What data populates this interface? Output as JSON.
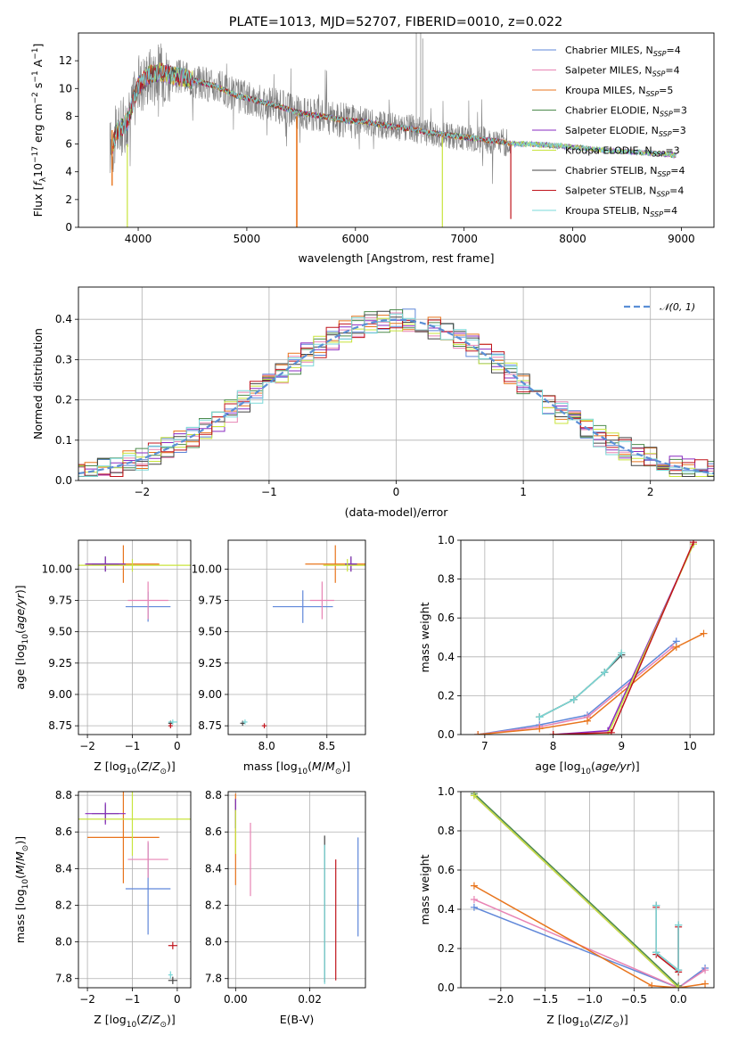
{
  "figure": {
    "title": "PLATE=1013, MJD=52707, FIBERID=0010, z=0.022"
  },
  "colors": {
    "Chabrier MILES": "#5f87d9",
    "Salpeter MILES": "#e884b4",
    "Kroupa MILES": "#e8741c",
    "Chabrier ELODIE": "#4c8a4c",
    "Salpeter ELODIE": "#8a2bc0",
    "Kroupa ELODIE": "#c8e43c",
    "Chabrier STELIB": "#444444",
    "Salpeter STELIB": "#c0141c",
    "Kroupa STELIB": "#7ad8d8"
  },
  "chart_data": [
    {
      "id": "spectrum",
      "type": "line",
      "title": "PLATE=1013, MJD=52707, FIBERID=0010, z=0.022",
      "xlabel": "wavelength [Angstrom, rest frame]",
      "ylabel": "Flux [f_λ 10^-17 erg cm^-2 s^-1 A^-1]",
      "xlim": [
        3450,
        9300
      ],
      "ylim": [
        0,
        14
      ],
      "xticks": [
        "4000",
        "5000",
        "6000",
        "7000",
        "8000",
        "9000"
      ],
      "yticks": [
        "0",
        "2",
        "4",
        "6",
        "8",
        "10",
        "12"
      ],
      "grid": false,
      "legend_position": "top-right",
      "legend": [
        {
          "model": "Chabrier MILES",
          "nssp": "4"
        },
        {
          "model": "Salpeter MILES",
          "nssp": "4"
        },
        {
          "model": "Kroupa MILES",
          "nssp": "5"
        },
        {
          "model": "Chabrier ELODIE",
          "nssp": "3"
        },
        {
          "model": "Salpeter ELODIE",
          "nssp": "3"
        },
        {
          "model": "Kroupa ELODIE",
          "nssp": "3"
        },
        {
          "model": "Chabrier STELIB",
          "nssp": "4"
        },
        {
          "model": "Salpeter STELIB",
          "nssp": "4"
        },
        {
          "model": "Kroupa STELIB",
          "nssp": "4"
        }
      ],
      "continuum": [
        [
          3760,
          5.8
        ],
        [
          3800,
          6.8
        ],
        [
          3900,
          7.6
        ],
        [
          4000,
          10.2
        ],
        [
          4100,
          11.0
        ],
        [
          4200,
          11.2
        ],
        [
          4300,
          11.0
        ],
        [
          4500,
          10.6
        ],
        [
          4700,
          10.2
        ],
        [
          4900,
          9.5
        ],
        [
          5100,
          9.1
        ],
        [
          5300,
          8.7
        ],
        [
          5500,
          8.2
        ],
        [
          5700,
          8.0
        ],
        [
          5900,
          7.7
        ],
        [
          6100,
          7.6
        ],
        [
          6300,
          7.3
        ],
        [
          6500,
          7.1
        ],
        [
          6700,
          6.8
        ],
        [
          6900,
          6.6
        ],
        [
          7100,
          6.4
        ],
        [
          7300,
          6.2
        ],
        [
          7450,
          6.0
        ],
        [
          7600,
          6.0
        ],
        [
          7800,
          5.9
        ],
        [
          8000,
          5.8
        ],
        [
          8200,
          5.6
        ],
        [
          8400,
          5.5
        ],
        [
          8600,
          5.4
        ],
        [
          8800,
          5.3
        ],
        [
          8950,
          5.2
        ]
      ]
    },
    {
      "id": "residuals",
      "type": "histogram",
      "xlabel": "(data-model)/error",
      "ylabel": "Normed distribution",
      "xlim": [
        -2.5,
        2.5
      ],
      "ylim": [
        0,
        0.48
      ],
      "xticks": [
        "−2",
        "−1",
        "0",
        "1",
        "2"
      ],
      "yticks": [
        "0.0",
        "0.1",
        "0.2",
        "0.3",
        "0.4"
      ],
      "grid": true,
      "legend_position": "top-right",
      "legend": [
        "𝒩(0, 1)"
      ],
      "bin_width": 0.1
    },
    {
      "id": "age-vs-z",
      "type": "errorbar",
      "xlabel": "Z [log10(Z/Z⊙)]",
      "ylabel": "age  [log10(age/yr)]",
      "xlim": [
        -2.2,
        0.3
      ],
      "ylim": [
        8.68,
        10.23
      ],
      "xticks": [
        "−2",
        "−1",
        "0"
      ],
      "yticks": [
        "8.75",
        "9.00",
        "9.25",
        "9.50",
        "9.75",
        "10.00"
      ],
      "grid": true,
      "points": [
        {
          "series": "Chabrier MILES",
          "x": -0.65,
          "xerr": 0.5,
          "y": 9.7,
          "yerr": 0.12
        },
        {
          "series": "Salpeter MILES",
          "x": -0.65,
          "xerr": 0.45,
          "y": 9.75,
          "yerr": 0.15
        },
        {
          "series": "Kroupa MILES",
          "x": -1.2,
          "xerr": 0.8,
          "y": 10.04,
          "yerr": 0.15
        },
        {
          "series": "Chabrier ELODIE",
          "x": -1.6,
          "xerr": 0.3,
          "y": 10.04,
          "yerr": 0.06
        },
        {
          "series": "Salpeter ELODIE",
          "x": -1.6,
          "xerr": 0.45,
          "y": 10.04,
          "yerr": 0.06
        },
        {
          "series": "Kroupa ELODIE",
          "x": -1.0,
          "xerr": 1.3,
          "y": 10.03,
          "yerr": 0.05
        },
        {
          "series": "Chabrier STELIB",
          "x": -0.15,
          "xerr": 0.05,
          "y": 8.77,
          "yerr": 0.02
        },
        {
          "series": "Salpeter STELIB",
          "x": -0.15,
          "xerr": 0.05,
          "y": 8.75,
          "yerr": 0.02
        },
        {
          "series": "Kroupa STELIB",
          "x": -0.1,
          "xerr": 0.1,
          "y": 8.78,
          "yerr": 0.02
        }
      ]
    },
    {
      "id": "age-vs-mass",
      "type": "errorbar",
      "xlabel": "mass [log10(M/M⊙)]",
      "ylabel": "",
      "xlim": [
        7.68,
        8.82
      ],
      "ylim": [
        8.68,
        10.23
      ],
      "xticks": [
        "8.0",
        "8.5"
      ],
      "yticks": [
        "8.75",
        "9.00",
        "9.25",
        "9.50",
        "9.75",
        "10.00"
      ],
      "grid": true,
      "points": [
        {
          "series": "Chabrier MILES",
          "x": 8.3,
          "xerr": 0.25,
          "y": 9.7,
          "yerr": 0.13
        },
        {
          "series": "Salpeter MILES",
          "x": 8.46,
          "xerr": 0.1,
          "y": 9.75,
          "yerr": 0.15
        },
        {
          "series": "Kroupa MILES",
          "x": 8.57,
          "xerr": 0.25,
          "y": 10.04,
          "yerr": 0.15
        },
        {
          "series": "Chabrier ELODIE",
          "x": 8.7,
          "xerr": 0.05,
          "y": 10.04,
          "yerr": 0.06
        },
        {
          "series": "Salpeter ELODIE",
          "x": 8.7,
          "xerr": 0.05,
          "y": 10.04,
          "yerr": 0.06
        },
        {
          "series": "Kroupa ELODIE",
          "x": 8.67,
          "xerr": 0.2,
          "y": 10.03,
          "yerr": 0.05
        },
        {
          "series": "Chabrier STELIB",
          "x": 7.8,
          "xerr": 0.02,
          "y": 8.77,
          "yerr": 0.02
        },
        {
          "series": "Salpeter STELIB",
          "x": 7.98,
          "xerr": 0.02,
          "y": 8.75,
          "yerr": 0.02
        },
        {
          "series": "Kroupa STELIB",
          "x": 7.82,
          "xerr": 0.02,
          "y": 8.78,
          "yerr": 0.02
        }
      ]
    },
    {
      "id": "mass-weight-vs-age",
      "type": "line",
      "xlabel": "age  [log10(age/yr)]",
      "ylabel": "mass weight",
      "xlim": [
        6.65,
        10.35
      ],
      "ylim": [
        0,
        1
      ],
      "xticks": [
        "7",
        "8",
        "9",
        "10"
      ],
      "yticks": [
        "0.0",
        "0.2",
        "0.4",
        "0.6",
        "0.8",
        "1.0"
      ],
      "grid": true,
      "series": [
        {
          "name": "Chabrier MILES",
          "points": [
            [
              6.9,
              0.0
            ],
            [
              7.8,
              0.05
            ],
            [
              8.5,
              0.1
            ],
            [
              9.8,
              0.48
            ]
          ]
        },
        {
          "name": "Salpeter MILES",
          "points": [
            [
              6.9,
              0.0
            ],
            [
              7.8,
              0.04
            ],
            [
              8.5,
              0.09
            ],
            [
              9.75,
              0.45
            ]
          ]
        },
        {
          "name": "Kroupa MILES",
          "points": [
            [
              6.9,
              0.0
            ],
            [
              7.8,
              0.03
            ],
            [
              8.5,
              0.07
            ],
            [
              9.8,
              0.45
            ],
            [
              10.2,
              0.52
            ]
          ]
        },
        {
          "name": "Chabrier ELODIE",
          "points": [
            [
              7.8,
              0.09
            ],
            [
              8.3,
              0.18
            ],
            [
              8.75,
              0.32
            ],
            [
              9.0,
              0.42
            ]
          ]
        },
        {
          "name": "Salpeter ELODIE",
          "points": [
            [
              8.0,
              0.0
            ],
            [
              8.8,
              0.02
            ],
            [
              10.05,
              0.98
            ]
          ]
        },
        {
          "name": "Kroupa ELODIE",
          "points": [
            [
              8.0,
              0.0
            ],
            [
              8.8,
              0.0
            ],
            [
              10.05,
              0.98
            ]
          ]
        },
        {
          "name": "Chabrier STELIB",
          "points": [
            [
              7.8,
              0.09
            ],
            [
              8.3,
              0.18
            ],
            [
              8.75,
              0.32
            ],
            [
              9.0,
              0.41
            ]
          ]
        },
        {
          "name": "Salpeter STELIB",
          "points": [
            [
              8.0,
              0.0
            ],
            [
              8.85,
              0.01
            ],
            [
              10.05,
              0.99
            ]
          ]
        },
        {
          "name": "Kroupa STELIB",
          "points": [
            [
              7.8,
              0.09
            ],
            [
              8.3,
              0.18
            ],
            [
              8.75,
              0.32
            ],
            [
              9.0,
              0.42
            ]
          ]
        }
      ]
    },
    {
      "id": "mass-vs-z",
      "type": "errorbar",
      "xlabel": "Z [log10(Z/Z⊙)]",
      "ylabel": "mass [log10(M/M⊙)]",
      "xlim": [
        -2.2,
        0.3
      ],
      "ylim": [
        7.75,
        8.82
      ],
      "xticks": [
        "−2",
        "−1",
        "0"
      ],
      "yticks": [
        "7.8",
        "8.0",
        "8.2",
        "8.4",
        "8.6",
        "8.8"
      ],
      "grid": true,
      "points": [
        {
          "series": "Chabrier MILES",
          "x": -0.65,
          "xerr": 0.5,
          "y": 8.29,
          "yerr": 0.25
        },
        {
          "series": "Salpeter MILES",
          "x": -0.65,
          "xerr": 0.45,
          "y": 8.45,
          "yerr": 0.1
        },
        {
          "series": "Kroupa MILES",
          "x": -1.2,
          "xerr": 0.8,
          "y": 8.57,
          "yerr": 0.25
        },
        {
          "series": "Chabrier ELODIE",
          "x": -1.6,
          "xerr": 0.3,
          "y": 8.7,
          "yerr": 0.05
        },
        {
          "series": "Salpeter ELODIE",
          "x": -1.6,
          "xerr": 0.45,
          "y": 8.7,
          "yerr": 0.06
        },
        {
          "series": "Kroupa ELODIE",
          "x": -1.0,
          "xerr": 1.3,
          "y": 8.67,
          "yerr": 0.2
        },
        {
          "series": "Chabrier STELIB",
          "x": -0.1,
          "xerr": 0.1,
          "y": 7.79,
          "yerr": 0.02
        },
        {
          "series": "Salpeter STELIB",
          "x": -0.1,
          "xerr": 0.1,
          "y": 7.98,
          "yerr": 0.02
        },
        {
          "series": "Kroupa STELIB",
          "x": -0.15,
          "xerr": 0.05,
          "y": 7.82,
          "yerr": 0.02
        }
      ]
    },
    {
      "id": "mass-vs-ebv",
      "type": "errorbar",
      "xlabel": "E(B-V)",
      "ylabel": "",
      "xlim": [
        -0.002,
        0.035
      ],
      "ylim": [
        7.75,
        8.82
      ],
      "xticks": [
        "0.00",
        "0.02"
      ],
      "yticks": [
        "7.8",
        "8.0",
        "8.2",
        "8.4",
        "8.6",
        "8.8"
      ],
      "grid": true,
      "points": [
        {
          "series": "Chabrier MILES",
          "x": 0.033,
          "y": 8.3,
          "yerr": 0.27
        },
        {
          "series": "Salpeter MILES",
          "x": 0.004,
          "y": 8.45,
          "yerr": 0.2
        },
        {
          "series": "Kroupa MILES",
          "x": 0.0,
          "y": 8.56,
          "yerr": 0.25
        },
        {
          "series": "Chabrier ELODIE",
          "x": 0.0,
          "y": 8.7,
          "yerr": 0.08
        },
        {
          "series": "Salpeter ELODIE",
          "x": 0.0,
          "y": 8.7,
          "yerr": 0.08
        },
        {
          "series": "Kroupa ELODIE",
          "x": 0.0,
          "y": 8.6,
          "yerr": 0.12
        },
        {
          "series": "Chabrier STELIB",
          "x": 0.024,
          "y": 8.18,
          "yerr": 0.4
        },
        {
          "series": "Salpeter STELIB",
          "x": 0.027,
          "y": 8.12,
          "yerr": 0.33
        },
        {
          "series": "Kroupa STELIB",
          "x": 0.024,
          "y": 8.15,
          "yerr": 0.38
        }
      ]
    },
    {
      "id": "mass-weight-vs-z",
      "type": "line",
      "xlabel": "Z [log10(Z/Z⊙)]",
      "ylabel": "mass weight",
      "xlim": [
        -2.45,
        0.4
      ],
      "ylim": [
        0,
        1
      ],
      "xticks": [
        "−2.0",
        "−1.5",
        "−1.0",
        "−0.5",
        "0.0"
      ],
      "yticks": [
        "0.0",
        "0.2",
        "0.4",
        "0.6",
        "0.8",
        "1.0"
      ],
      "grid": true,
      "series": [
        {
          "name": "Chabrier MILES",
          "points": [
            [
              -2.3,
              0.41
            ],
            [
              0.0,
              0.0
            ],
            [
              0.3,
              0.1
            ]
          ]
        },
        {
          "name": "Salpeter MILES",
          "points": [
            [
              -2.3,
              0.45
            ],
            [
              0.0,
              0.0
            ],
            [
              0.3,
              0.09
            ]
          ]
        },
        {
          "name": "Kroupa MILES",
          "points": [
            [
              -2.3,
              0.52
            ],
            [
              -0.3,
              0.01
            ],
            [
              0.0,
              0.0
            ],
            [
              0.3,
              0.02
            ]
          ]
        },
        {
          "name": "Chabrier ELODIE",
          "points": [
            [
              -2.3,
              0.99
            ],
            [
              0.0,
              0.01
            ]
          ]
        },
        {
          "name": "Salpeter ELODIE",
          "points": [
            [
              -2.3,
              0.98
            ],
            [
              0.0,
              0.0
            ]
          ]
        },
        {
          "name": "Kroupa ELODIE",
          "points": [
            [
              -2.3,
              0.98
            ],
            [
              0.0,
              0.0
            ]
          ]
        },
        {
          "name": "Chabrier STELIB",
          "points": [
            [
              -0.25,
              0.42
            ],
            [
              -0.25,
              0.18
            ],
            [
              0.0,
              0.09
            ],
            [
              0.0,
              0.32
            ]
          ]
        },
        {
          "name": "Salpeter STELIB",
          "points": [
            [
              -0.25,
              0.41
            ],
            [
              -0.25,
              0.17
            ],
            [
              0.0,
              0.08
            ],
            [
              0.0,
              0.31
            ]
          ]
        },
        {
          "name": "Kroupa STELIB",
          "points": [
            [
              -0.25,
              0.42
            ],
            [
              -0.25,
              0.18
            ],
            [
              0.0,
              0.09
            ],
            [
              0.0,
              0.32
            ]
          ]
        }
      ]
    }
  ]
}
